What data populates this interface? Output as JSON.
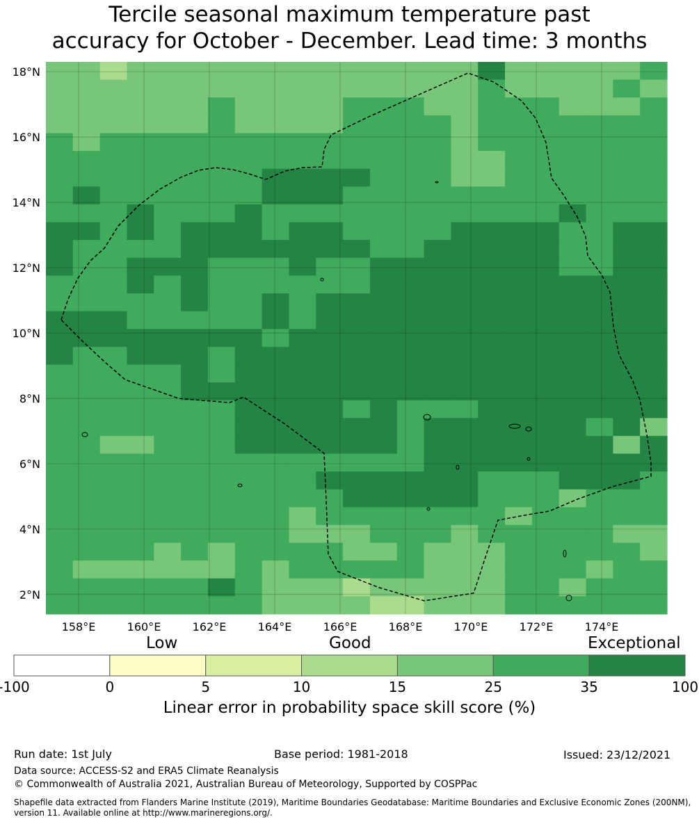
{
  "title_line1": "Tercile seasonal maximum temperature past",
  "title_line2": "accuracy for October - December. Lead time: 3 months",
  "map": {
    "lon_range": [
      157,
      176
    ],
    "lat_range": [
      1.4,
      18.3
    ],
    "x_ticks": [
      "158°E",
      "160°E",
      "162°E",
      "164°E",
      "166°E",
      "168°E",
      "170°E",
      "172°E",
      "174°E"
    ],
    "y_ticks": [
      "18°N",
      "16°N",
      "14°N",
      "12°N",
      "10°N",
      "8°N",
      "6°N",
      "4°N",
      "2°N"
    ],
    "colors": {
      "c1": "#fcfdc4",
      "c2": "#d9eea0",
      "c3": "#abdb8c",
      "c4": "#78c679",
      "c5": "#41ab5d",
      "c6": "#238443"
    },
    "boundary_style": "dashed black"
  },
  "colorbar": {
    "labels": {
      "low": "Low",
      "good": "Good",
      "exceptional": "Exceptional"
    },
    "ticks": [
      "-100",
      "0",
      "5",
      "10",
      "15",
      "25",
      "35",
      "100"
    ],
    "colors": [
      "#ffffff",
      "#fcfdc4",
      "#d9eea0",
      "#abdb8c",
      "#78c679",
      "#41ab5d",
      "#238443"
    ],
    "title": "Linear error in probability space skill score (%)"
  },
  "footer": {
    "run_date": "Run date: 1st July",
    "base_period": "Base period: 1981-2018",
    "issued": "Issued: 23/12/2021",
    "data_source": "Data source: ACCESS-S2 and ERA5 Climate Reanalysis",
    "copyright": "© Commonwealth of Australia 2021, Australian Bureau of Meteorology, Supported by COSPPac",
    "shapefile": "Shapefile data extracted from Flanders Marine Institute (2019), Maritime Boundaries Geodatabase: Maritime Boundaries and Exclusive Economic Zones (200NM), version 11. Available online at http://www.marineregions.org/."
  }
}
